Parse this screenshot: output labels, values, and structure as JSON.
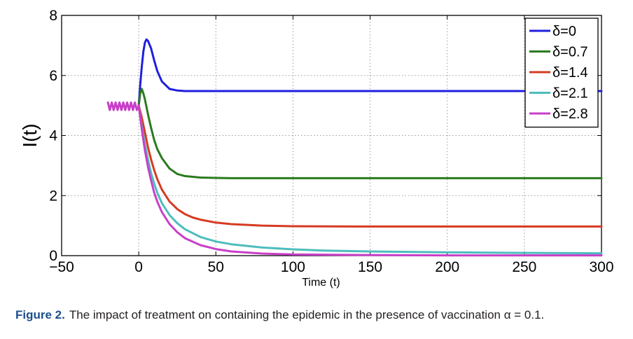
{
  "chart_data": {
    "type": "line",
    "title": "",
    "xlabel": "Time (t)",
    "ylabel": "I(t)",
    "xlim": [
      -50,
      300
    ],
    "ylim": [
      0,
      8
    ],
    "xticks": [
      -50,
      0,
      50,
      100,
      150,
      200,
      250,
      300
    ],
    "yticks": [
      0,
      2,
      4,
      6,
      8
    ],
    "xtick_labels": [
      "−50",
      "0",
      "50",
      "100",
      "150",
      "200",
      "250",
      "300"
    ],
    "ytick_labels": [
      "0",
      "2",
      "4",
      "6",
      "8"
    ],
    "grid": true,
    "legend_position": "top-right",
    "series": [
      {
        "name": "δ=0",
        "color": "#1f1fdf",
        "x": [
          0,
          1,
          2,
          3,
          4,
          5,
          6,
          8,
          10,
          12,
          15,
          20,
          25,
          30,
          40,
          60,
          100,
          150,
          200,
          250,
          300
        ],
        "y": [
          5.0,
          5.7,
          6.3,
          6.8,
          7.1,
          7.2,
          7.15,
          6.9,
          6.5,
          6.15,
          5.8,
          5.55,
          5.5,
          5.48,
          5.48,
          5.48,
          5.48,
          5.48,
          5.48,
          5.48,
          5.48
        ]
      },
      {
        "name": "δ=0.7",
        "color": "#2b7a1f",
        "x": [
          0,
          1,
          2,
          3,
          4,
          6,
          8,
          10,
          12,
          15,
          20,
          25,
          30,
          40,
          50,
          60,
          100,
          150,
          200,
          250,
          300
        ],
        "y": [
          5.0,
          5.4,
          5.55,
          5.4,
          5.2,
          4.7,
          4.25,
          3.85,
          3.55,
          3.25,
          2.9,
          2.72,
          2.65,
          2.6,
          2.59,
          2.58,
          2.58,
          2.58,
          2.58,
          2.58,
          2.58
        ]
      },
      {
        "name": "δ=1.4",
        "color": "#d63a22",
        "x": [
          0,
          2,
          4,
          6,
          8,
          10,
          12,
          15,
          20,
          25,
          30,
          35,
          40,
          50,
          60,
          80,
          100,
          150,
          200,
          250,
          300
        ],
        "y": [
          5.0,
          4.6,
          4.1,
          3.6,
          3.2,
          2.85,
          2.55,
          2.2,
          1.8,
          1.55,
          1.38,
          1.27,
          1.2,
          1.1,
          1.05,
          1.0,
          0.98,
          0.97,
          0.97,
          0.97,
          0.97
        ]
      },
      {
        "name": "δ=2.1",
        "color": "#4dbdbd",
        "x": [
          0,
          2,
          4,
          6,
          8,
          10,
          12,
          15,
          20,
          25,
          30,
          40,
          50,
          60,
          80,
          100,
          120,
          150,
          200,
          250,
          300
        ],
        "y": [
          5.0,
          4.3,
          3.7,
          3.2,
          2.75,
          2.4,
          2.1,
          1.75,
          1.35,
          1.08,
          0.88,
          0.62,
          0.47,
          0.38,
          0.27,
          0.21,
          0.17,
          0.14,
          0.11,
          0.09,
          0.08
        ]
      },
      {
        "name": "δ=2.8",
        "color": "#c83fc8",
        "x": [
          -20,
          -18.75,
          -17.5,
          -16.25,
          -15,
          -13.75,
          -12.5,
          -11.25,
          -10,
          -8.75,
          -7.5,
          -6.25,
          -5,
          -3.75,
          -2.5,
          -1.25,
          0,
          2,
          4,
          6,
          8,
          10,
          12,
          15,
          20,
          25,
          30,
          40,
          50,
          60,
          80,
          100,
          150,
          200,
          250,
          300
        ],
        "y": [
          5.1,
          4.85,
          5.1,
          4.85,
          5.1,
          4.85,
          5.1,
          4.85,
          5.1,
          4.85,
          5.1,
          4.85,
          5.1,
          4.85,
          5.1,
          4.85,
          5.0,
          4.2,
          3.5,
          2.95,
          2.5,
          2.1,
          1.8,
          1.45,
          1.05,
          0.78,
          0.58,
          0.35,
          0.22,
          0.14,
          0.07,
          0.04,
          0.02,
          0.01,
          0.01,
          0.01
        ]
      }
    ]
  },
  "caption": {
    "label": "Figure 2.",
    "text": "The impact of treatment on containing the epidemic in the presence of vaccination α = 0.1."
  }
}
